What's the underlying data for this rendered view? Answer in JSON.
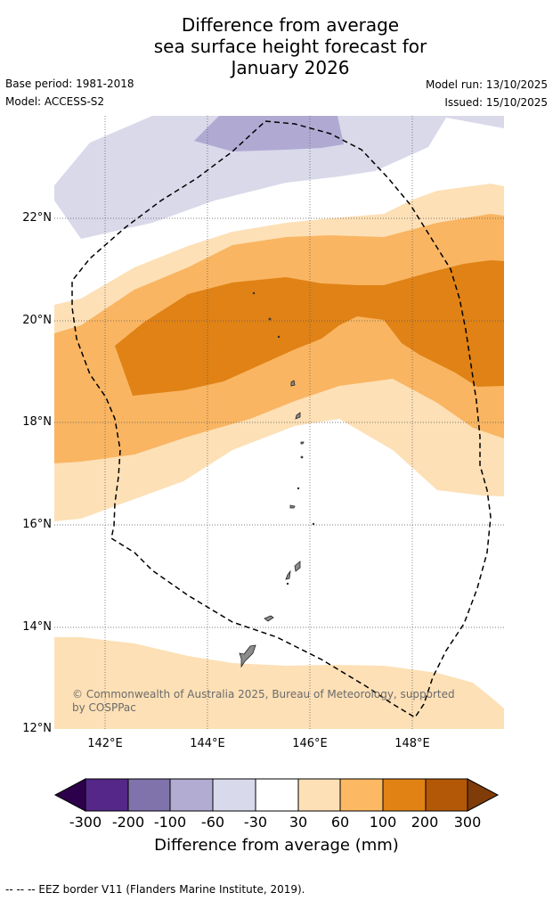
{
  "title": {
    "line1": "Difference from average",
    "line2": "sea surface height forecast for",
    "line3": "January 2026"
  },
  "meta": {
    "base_period": "Base period: 1981-2018",
    "model": "Model: ACCESS-S2",
    "model_run": "Model run: 13/10/2025",
    "issued": "Issued: 15/10/2025"
  },
  "map": {
    "lat_labels": [
      "22°N",
      "20°N",
      "18°N",
      "16°N",
      "14°N",
      "12°N"
    ],
    "lon_labels": [
      "142°E",
      "144°E",
      "146°E",
      "148°E"
    ],
    "copyright": "© Commonwealth of Australia 2025, Bureau of Meteorology, supported by COSPPac",
    "colors": {
      "neg_60_30": "#d9d9ea",
      "neg_100_60": "#b0aad3",
      "pos_30_60": "#fde0b6",
      "pos_60_100": "#f9b562",
      "pos_100_200": "#e08215",
      "land": "#8c8c8c"
    }
  },
  "legend": {
    "ticks": [
      "-300",
      "-200",
      "-100",
      "-60",
      "-30",
      "30",
      "60",
      "100",
      "200",
      "300"
    ],
    "title": "Difference from average (mm)",
    "colors": [
      "#2d004b",
      "#542788",
      "#8073ac",
      "#b2abd2",
      "#d8daeb",
      "#ffffff",
      "#fee0b6",
      "#fdb863",
      "#e08214",
      "#b35806",
      "#7f3b08"
    ]
  },
  "footer": "--  --  -- EEZ border V11 (Flanders Marine Institute, 2019)."
}
